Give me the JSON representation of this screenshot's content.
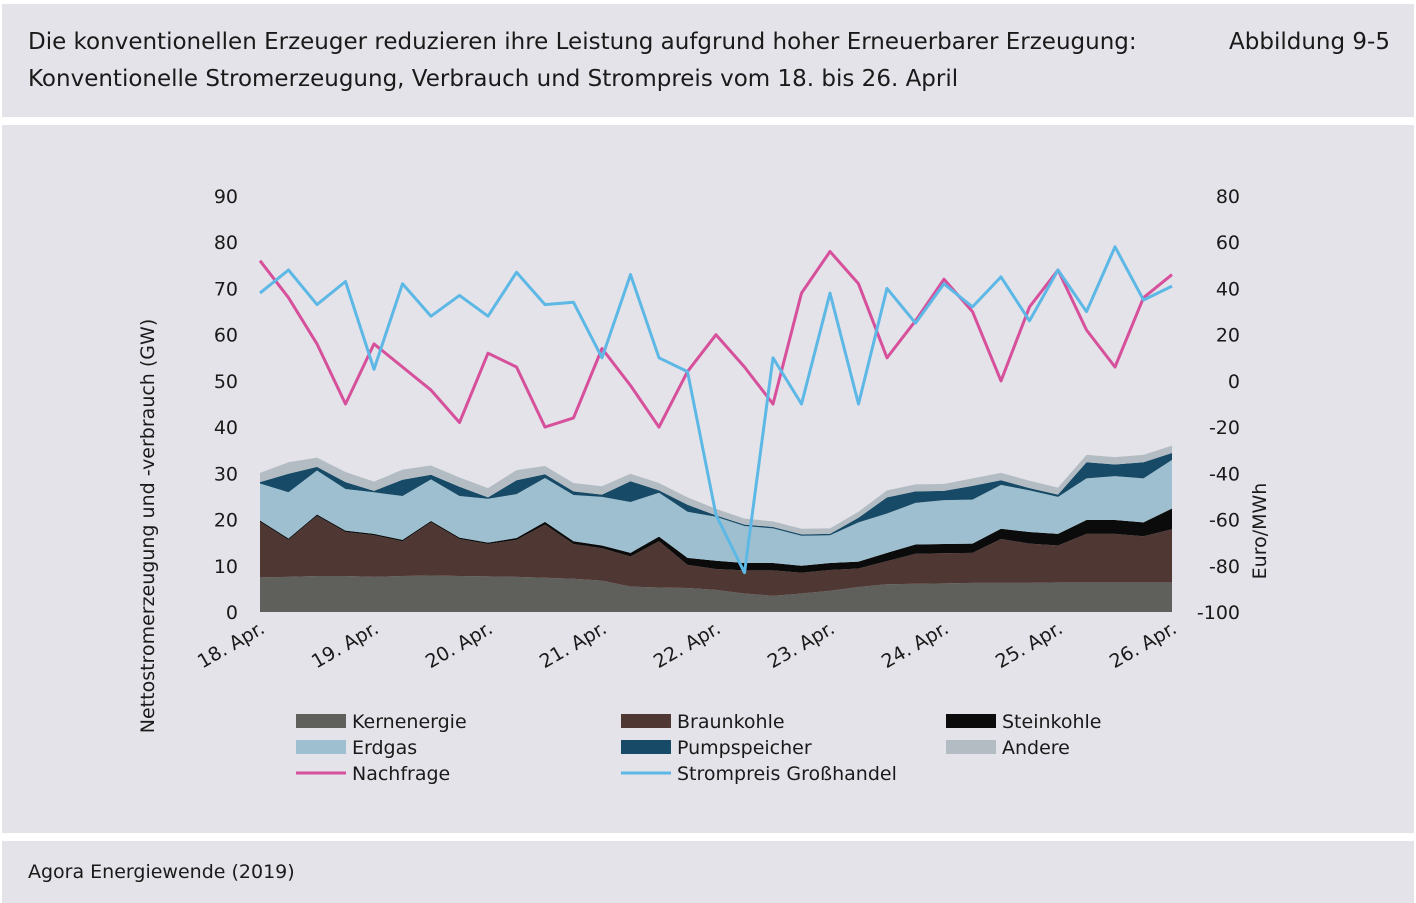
{
  "header": {
    "title": "Die konventionellen Erzeuger reduzieren ihre Leistung aufgrund hoher Erneuerbarer Erzeugung:  Konventionelle Stromerzeugung, Verbrauch und Strompreis vom 18. bis 26. April",
    "figure_number": "Abbildung 9-5"
  },
  "footer": {
    "source": "Agora Energiewende (2019)"
  },
  "colors": {
    "Kernenergie": "#5f5f5b",
    "Braunkohle": "#4f3734",
    "Steinkohle": "#0b0b0b",
    "Erdgas": "#9dbfcf",
    "Pumpspeicher": "#174a66",
    "Andere": "#b3bcc3",
    "Nachfrage": "#d6509b",
    "Strompreis Großhandel": "#5db8e6"
  },
  "chart_data": {
    "type": "area",
    "ylabel": "Nettostromerzeugung und -verbrauch (GW)",
    "y2label": "Euro/MWh",
    "ylim": [
      0,
      90
    ],
    "y2lim": [
      -100,
      80
    ],
    "yticks": [
      "0",
      "10",
      "20",
      "30",
      "40",
      "50",
      "60",
      "70",
      "80",
      "90"
    ],
    "y2ticks": [
      "-100",
      "-80",
      "-60",
      "-40",
      "-20",
      "0",
      "20",
      "40",
      "60",
      "80"
    ],
    "xticks": [
      "18. Apr.",
      "19. Apr.",
      "20. Apr.",
      "21. Apr.",
      "22. Apr.",
      "23. Apr.",
      "24. Apr.",
      "25. Apr.",
      "26. Apr."
    ],
    "x": [
      "18.04. 0:00",
      "18.04. 6:00",
      "18.04. 12:00",
      "18.04. 18:00",
      "19.04. 0:00",
      "19.04. 6:00",
      "19.04. 12:00",
      "19.04. 18:00",
      "20.04. 0:00",
      "20.04. 6:00",
      "20.04. 12:00",
      "20.04. 18:00",
      "21.04. 0:00",
      "21.04. 6:00",
      "21.04. 12:00",
      "21.04. 18:00",
      "22.04. 0:00",
      "22.04. 6:00",
      "22.04. 12:00",
      "22.04. 18:00",
      "23.04. 0:00",
      "23.04. 6:00",
      "23.04. 12:00",
      "23.04. 18:00",
      "24.04. 0:00",
      "24.04. 6:00",
      "24.04. 12:00",
      "24.04. 18:00",
      "25.04. 0:00",
      "25.04. 6:00",
      "25.04. 12:00",
      "25.04. 18:00",
      "26.04. 0:00"
    ],
    "stacked_series": [
      {
        "name": "Kernenergie",
        "values": [
          7.5,
          7.6,
          7.8,
          7.8,
          7.6,
          7.8,
          7.9,
          7.8,
          7.7,
          7.6,
          7.4,
          7.2,
          6.8,
          5.5,
          5.3,
          5.2,
          4.8,
          4.0,
          3.5,
          4.0,
          4.6,
          5.4,
          6.0,
          6.1,
          6.2,
          6.3,
          6.3,
          6.3,
          6.4,
          6.4,
          6.4,
          6.4,
          6.4
        ]
      },
      {
        "name": "Braunkohle",
        "values": [
          12.0,
          8.0,
          13.0,
          9.5,
          9.0,
          7.5,
          11.5,
          8.0,
          7.0,
          8.0,
          11.5,
          7.5,
          7.0,
          6.5,
          10.0,
          5.0,
          4.5,
          5.0,
          5.5,
          4.5,
          4.5,
          4.0,
          5.0,
          6.5,
          6.5,
          6.5,
          9.5,
          8.5,
          8.0,
          10.5,
          10.5,
          10.0,
          11.5
        ]
      },
      {
        "name": "Steinkohle",
        "values": [
          0.3,
          0.3,
          0.3,
          0.3,
          0.3,
          0.3,
          0.3,
          0.3,
          0.3,
          0.4,
          0.6,
          0.6,
          0.6,
          0.8,
          1.0,
          1.5,
          1.8,
          1.6,
          1.6,
          1.5,
          1.5,
          1.5,
          1.8,
          2.0,
          2.0,
          2.0,
          2.2,
          2.5,
          2.5,
          3.0,
          3.0,
          3.0,
          4.5
        ]
      },
      {
        "name": "Erdgas",
        "values": [
          8.0,
          10.0,
          9.5,
          9.0,
          9.0,
          9.5,
          9.0,
          9.0,
          9.5,
          9.5,
          9.5,
          10.0,
          10.5,
          11.0,
          9.5,
          10.0,
          9.5,
          8.0,
          7.5,
          6.5,
          6.0,
          8.5,
          8.5,
          9.0,
          9.5,
          9.5,
          9.5,
          9.0,
          8.0,
          9.0,
          9.5,
          9.5,
          10.5
        ]
      },
      {
        "name": "Pumpspeicher",
        "values": [
          0.3,
          4.0,
          0.8,
          1.5,
          0.3,
          3.5,
          1.0,
          2.0,
          0.3,
          3.0,
          0.8,
          0.8,
          0.5,
          4.5,
          0.5,
          1.5,
          0.3,
          0.3,
          0.3,
          0.3,
          0.3,
          1.0,
          3.5,
          2.5,
          2.0,
          3.0,
          1.0,
          0.5,
          0.5,
          3.5,
          2.5,
          3.5,
          1.5
        ]
      },
      {
        "name": "Andere",
        "values": [
          2.0,
          2.5,
          2.0,
          2.2,
          2.0,
          2.2,
          2.0,
          2.0,
          2.0,
          2.2,
          1.8,
          1.8,
          1.8,
          1.6,
          1.6,
          1.6,
          1.4,
          1.3,
          1.2,
          1.2,
          1.2,
          1.3,
          1.5,
          1.5,
          1.5,
          1.6,
          1.6,
          1.6,
          1.5,
          1.6,
          1.6,
          1.6,
          1.6
        ]
      }
    ],
    "line_series": [
      {
        "name": "Nachfrage",
        "axis": "left",
        "values": [
          76,
          68,
          58,
          45,
          58,
          53,
          48,
          41,
          56,
          53,
          40,
          42,
          57,
          49,
          40,
          52,
          60,
          53,
          45,
          69,
          78,
          71,
          55,
          63,
          72,
          65,
          50,
          66,
          74,
          61,
          53,
          68,
          73
        ]
      },
      {
        "name": "Strompreis Großhandel",
        "axis": "right",
        "values": [
          38,
          48,
          33,
          43,
          5,
          42,
          28,
          37,
          28,
          47,
          33,
          34,
          10,
          46,
          10,
          4,
          -58,
          -83,
          10,
          -10,
          38,
          -10,
          40,
          25,
          42,
          32,
          45,
          26,
          48,
          30,
          58,
          35,
          41
        ]
      }
    ],
    "legend": [
      "Kernenergie",
      "Braunkohle",
      "Steinkohle",
      "Erdgas",
      "Pumpspeicher",
      "Andere",
      "Nachfrage",
      "Strompreis Großhandel"
    ],
    "legend_position": "bottom",
    "grid": false
  }
}
